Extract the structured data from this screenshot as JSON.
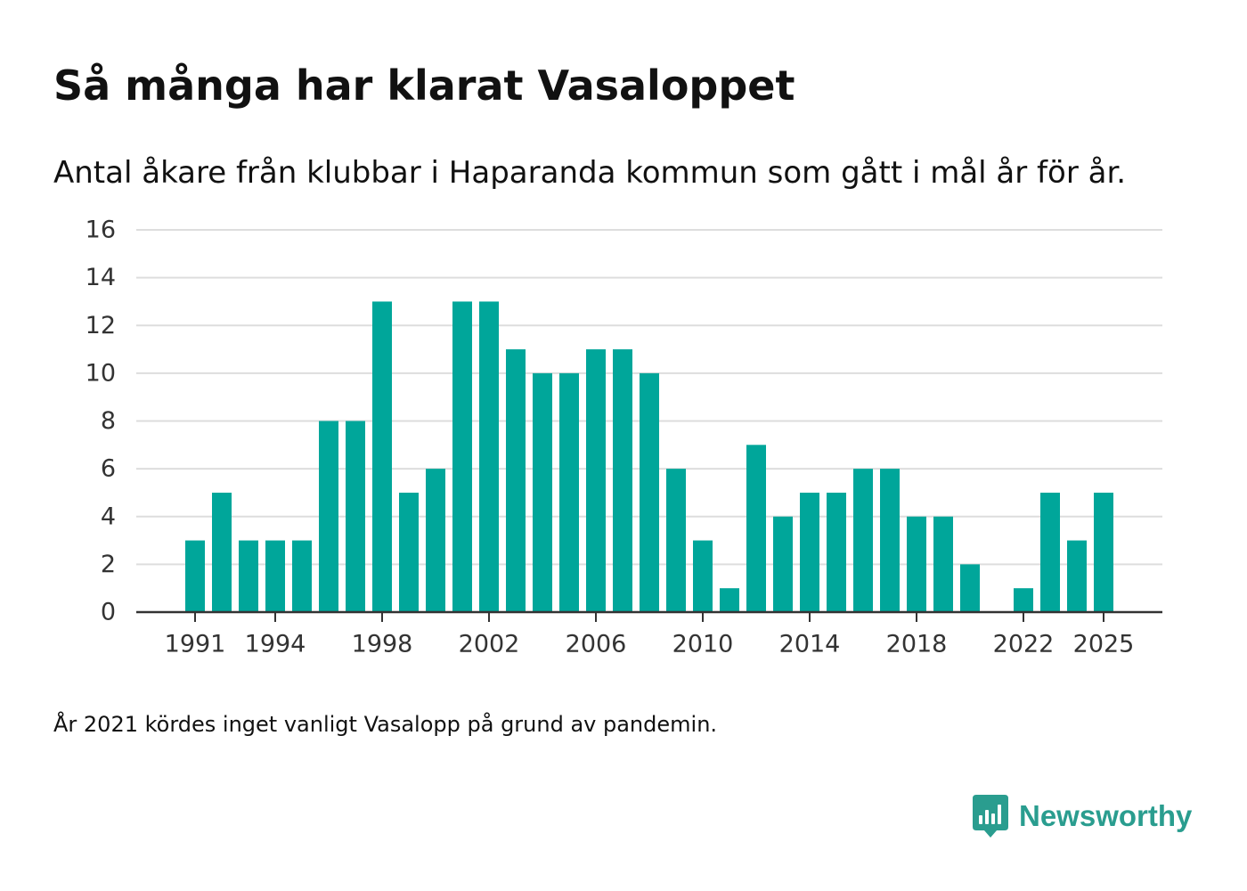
{
  "title": "Så många har klarat Vasaloppet",
  "subtitle": "Antal åkare från klubbar i Haparanda kommun som gått i mål år för år.",
  "note": "År 2021 kördes inget vanligt Vasalopp på grund av pandemin.",
  "brand": {
    "name": "Newsworthy",
    "icon": "newsworthy-logo-icon",
    "color": "#2a9d8f"
  },
  "colors": {
    "bar": "#00a69a",
    "grid": "#dddddd",
    "axis": "#333333",
    "text": "#111111"
  },
  "chart_data": {
    "type": "bar",
    "title": "Så många har klarat Vasaloppet",
    "xlabel": "",
    "ylabel": "",
    "ylim": [
      0,
      16
    ],
    "yticks": [
      0,
      2,
      4,
      6,
      8,
      10,
      12,
      14,
      16
    ],
    "xlim": [
      1988.8,
      2027.2
    ],
    "xticks": [
      1991,
      1994,
      1998,
      2002,
      2006,
      2010,
      2014,
      2018,
      2022,
      2025
    ],
    "grid": true,
    "legend": "none",
    "categories": [
      1991,
      1992,
      1993,
      1994,
      1995,
      1996,
      1997,
      1998,
      1999,
      2000,
      2001,
      2002,
      2003,
      2004,
      2005,
      2006,
      2007,
      2008,
      2009,
      2010,
      2011,
      2012,
      2013,
      2014,
      2015,
      2016,
      2017,
      2018,
      2019,
      2020,
      2021,
      2022,
      2023,
      2024,
      2025
    ],
    "values": [
      3,
      5,
      3,
      3,
      3,
      8,
      8,
      13,
      5,
      6,
      13,
      13,
      11,
      10,
      10,
      11,
      11,
      10,
      6,
      3,
      1,
      7,
      4,
      5,
      5,
      6,
      6,
      4,
      4,
      2,
      null,
      1,
      5,
      3,
      5
    ]
  }
}
